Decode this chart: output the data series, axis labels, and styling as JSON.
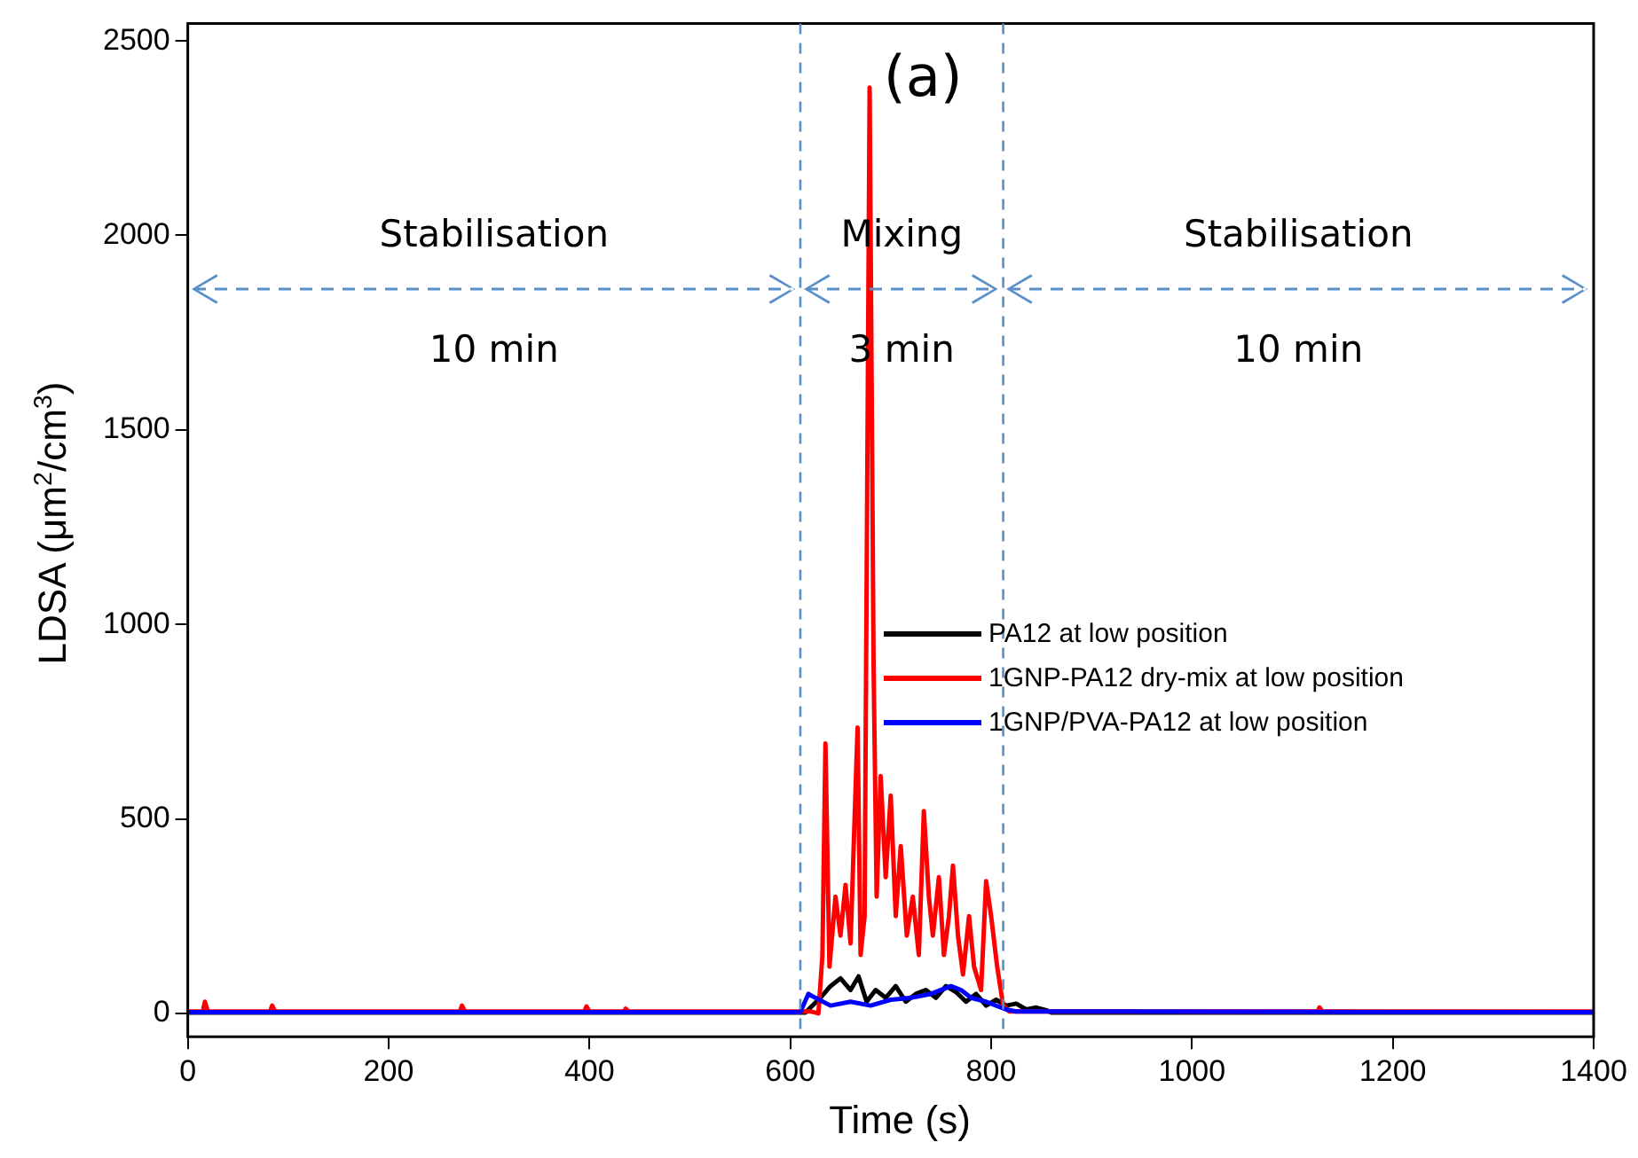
{
  "chart_data": {
    "type": "line",
    "xlabel": "Time (s)",
    "ylabel": "LDSA (μm$^{2}$/cm$^{3}$)",
    "xlim": [
      0,
      1400
    ],
    "xticks": [
      0,
      200,
      400,
      600,
      800,
      1000,
      1200,
      1400
    ],
    "ylim": [
      -60,
      2545
    ],
    "yticks": [
      0,
      500,
      1000,
      1500,
      2000,
      2500
    ],
    "grid": false,
    "legend": "right",
    "marker": "none",
    "line_style": "solid",
    "series": [
      {
        "name": "PA12 at low position",
        "color": "#000000",
        "x": [
          0,
          615,
          630,
          640,
          650,
          660,
          668,
          676,
          685,
          695,
          705,
          715,
          725,
          735,
          745,
          755,
          765,
          775,
          785,
          795,
          805,
          815,
          825,
          835,
          845,
          855,
          860,
          1400
        ],
        "values": [
          2,
          2,
          40,
          70,
          90,
          60,
          95,
          30,
          60,
          40,
          70,
          30,
          50,
          60,
          40,
          70,
          55,
          30,
          50,
          20,
          35,
          20,
          25,
          10,
          15,
          8,
          2,
          2
        ]
      },
      {
        "name": "1GNP-PA12 dry-mix at low position",
        "color": "#ff0000",
        "x": [
          0,
          15,
          17,
          20,
          82,
          84,
          87,
          271,
          273,
          276,
          395,
          397,
          400,
          434,
          436,
          439,
          620,
          628,
          632,
          635,
          639,
          645,
          650,
          655,
          660,
          667,
          670,
          674,
          679,
          683,
          686,
          690,
          695,
          700,
          705,
          710,
          716,
          722,
          728,
          733,
          738,
          742,
          748,
          753,
          758,
          762,
          767,
          772,
          778,
          783,
          790,
          795,
          800,
          806,
          812,
          818,
          900,
          1125,
          1127,
          1130,
          1400
        ],
        "values": [
          5,
          5,
          30,
          5,
          5,
          20,
          5,
          5,
          20,
          5,
          5,
          18,
          5,
          5,
          12,
          5,
          5,
          0,
          150,
          694,
          120,
          300,
          200,
          330,
          180,
          735,
          150,
          250,
          2380,
          880,
          300,
          610,
          350,
          560,
          250,
          430,
          200,
          300,
          150,
          520,
          300,
          200,
          350,
          150,
          250,
          380,
          200,
          100,
          250,
          120,
          60,
          340,
          250,
          120,
          20,
          5,
          5,
          5,
          15,
          5,
          5
        ]
      },
      {
        "name": "1GNP/PVA-PA12 at low position",
        "color": "#0000ff",
        "x": [
          0,
          610,
          618,
          625,
          640,
          660,
          680,
          700,
          720,
          740,
          760,
          770,
          780,
          795,
          805,
          815,
          825,
          1400
        ],
        "values": [
          3,
          3,
          50,
          40,
          20,
          30,
          20,
          35,
          40,
          50,
          70,
          60,
          40,
          30,
          20,
          10,
          5,
          3
        ]
      }
    ],
    "ref_lines": [
      {
        "axis": "x",
        "value": 610,
        "color": "#5b8fc7",
        "line_style": "dashed"
      },
      {
        "axis": "x",
        "value": 812,
        "color": "#5b8fc7",
        "line_style": "dashed"
      }
    ],
    "annotations": [
      "(a)",
      "Stabilisation",
      "10 min",
      "Mixing",
      "3 min",
      "Stabilisation",
      "10 min"
    ]
  }
}
